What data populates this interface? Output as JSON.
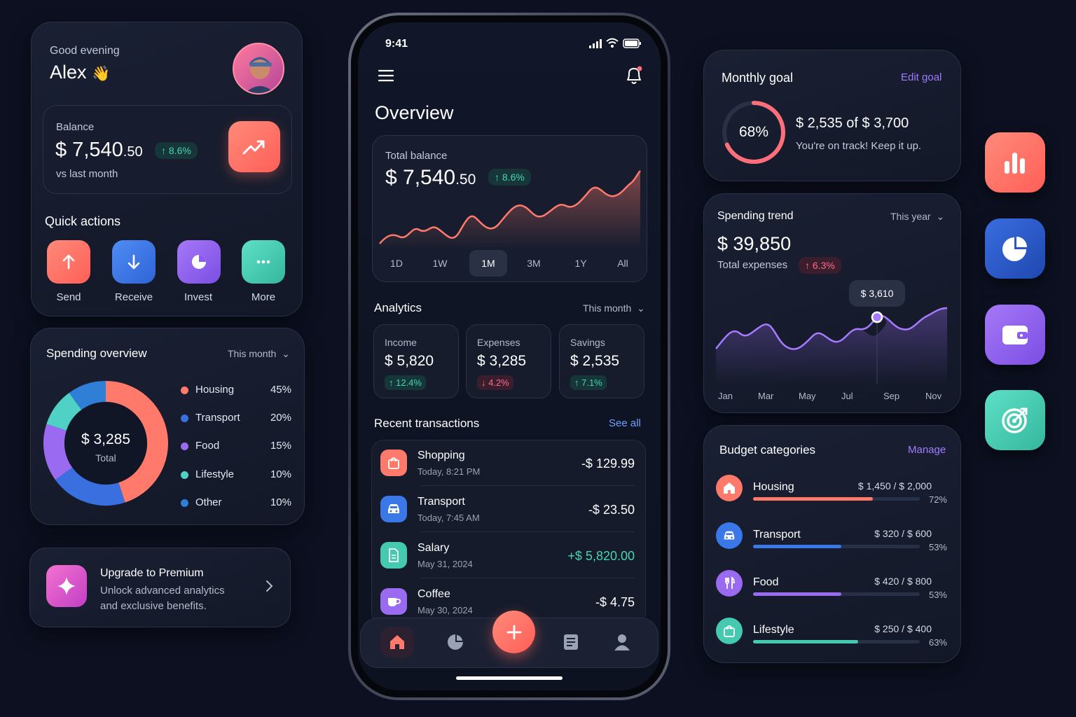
{
  "profile": {
    "greeting": "Good evening",
    "name": "Alex",
    "wave": "👋"
  },
  "balance_card": {
    "label": "Balance",
    "main": "$ 7,540",
    "cents": ".50",
    "change": "↑ 8.6%",
    "sub": "vs last month"
  },
  "quick_actions": {
    "title": "Quick actions",
    "items": [
      {
        "label": "Send",
        "icon": "arrow-up-icon"
      },
      {
        "label": "Receive",
        "icon": "arrow-down-icon"
      },
      {
        "label": "Invest",
        "icon": "pie-icon"
      },
      {
        "label": "More",
        "icon": "more-icon"
      }
    ]
  },
  "spending_overview": {
    "title": "Spending overview",
    "period": "This month",
    "center_value": "$ 3,285",
    "center_label": "Total",
    "legend": [
      {
        "name": "Housing",
        "pct": "45%",
        "value": 45,
        "color": "#ff7a6b"
      },
      {
        "name": "Transport",
        "pct": "20%",
        "value": 20,
        "color": "#3a6fe0"
      },
      {
        "name": "Food",
        "pct": "15%",
        "value": 15,
        "color": "#9a6bf0"
      },
      {
        "name": "Lifestyle",
        "pct": "10%",
        "value": 10,
        "color": "#4fd1c5"
      },
      {
        "name": "Other",
        "pct": "10%",
        "value": 10,
        "color": "#2f7fd6"
      }
    ]
  },
  "premium": {
    "title": "Upgrade to Premium",
    "line1": "Unlock advanced analytics",
    "line2": "and exclusive benefits."
  },
  "phone": {
    "time": "9:41",
    "title": "Overview",
    "total": {
      "label": "Total balance",
      "main": "$ 7,540",
      "cents": ".50",
      "change": "↑ 8.6%"
    },
    "ranges": [
      "1D",
      "1W",
      "1M",
      "3M",
      "1Y",
      "All"
    ],
    "active_range": "1M",
    "analytics": {
      "title": "Analytics",
      "period": "This month",
      "stats": [
        {
          "label": "Income",
          "value": "$ 5,820",
          "change": "↑ 12.4%",
          "dir": "up"
        },
        {
          "label": "Expenses",
          "value": "$ 3,285",
          "change": "↓ 4.2%",
          "dir": "down"
        },
        {
          "label": "Savings",
          "value": "$ 2,535",
          "change": "↑ 7.1%",
          "dir": "up"
        }
      ]
    },
    "recent": {
      "title": "Recent transactions",
      "see_all": "See all",
      "items": [
        {
          "name": "Shopping",
          "time": "Today, 8:21 PM",
          "amount": "-$ 129.99",
          "color": "#ff7a6b",
          "icon": "bag-icon"
        },
        {
          "name": "Transport",
          "time": "Today, 7:45 AM",
          "amount": "-$ 23.50",
          "color": "#3a78e8",
          "icon": "car-icon"
        },
        {
          "name": "Salary",
          "time": "May 31, 2024",
          "amount": "+$ 5,820.00",
          "color": "#45c9b0",
          "icon": "document-icon"
        },
        {
          "name": "Coffee",
          "time": "May 30, 2024",
          "amount": "-$ 4.75",
          "color": "#9a6bf0",
          "icon": "coffee-icon"
        }
      ]
    }
  },
  "monthly_goal": {
    "title": "Monthly goal",
    "edit": "Edit goal",
    "percent": "68%",
    "progress": 0.68,
    "amount": "$ 2,535 of $ 3,700",
    "note": "You're on track! Keep it up."
  },
  "spending_trend": {
    "title": "Spending trend",
    "period": "This year",
    "amount": "$ 39,850",
    "label": "Total expenses",
    "change": "↑ 6.3%",
    "tooltip": "$ 3,610",
    "months": [
      "Jan",
      "Mar",
      "May",
      "Jul",
      "Sep",
      "Nov"
    ]
  },
  "budget": {
    "title": "Budget categories",
    "manage": "Manage",
    "items": [
      {
        "name": "Housing",
        "amount": "$ 1,450 / $ 2,000",
        "pct": "72%",
        "value": 0.72,
        "color": "#ff7a6b",
        "icon": "home-icon"
      },
      {
        "name": "Transport",
        "amount": "$ 320 / $ 600",
        "pct": "53%",
        "value": 0.53,
        "color": "#3a78e8",
        "icon": "car-icon"
      },
      {
        "name": "Food",
        "amount": "$ 420 / $ 800",
        "pct": "53%",
        "value": 0.53,
        "color": "#9a6bf0",
        "icon": "utensils-icon"
      },
      {
        "name": "Lifestyle",
        "amount": "$ 250 / $ 400",
        "pct": "63%",
        "value": 0.63,
        "color": "#45c9b0",
        "icon": "bag-icon"
      }
    ]
  },
  "side_tiles": [
    {
      "icon": "bar-chart-icon",
      "color": "#ff6f61"
    },
    {
      "icon": "pie-chart-icon",
      "color": "#2c56c8"
    },
    {
      "icon": "wallet-icon",
      "color": "#8b5cf0"
    },
    {
      "icon": "target-icon",
      "color": "#3fc2a7"
    }
  ]
}
